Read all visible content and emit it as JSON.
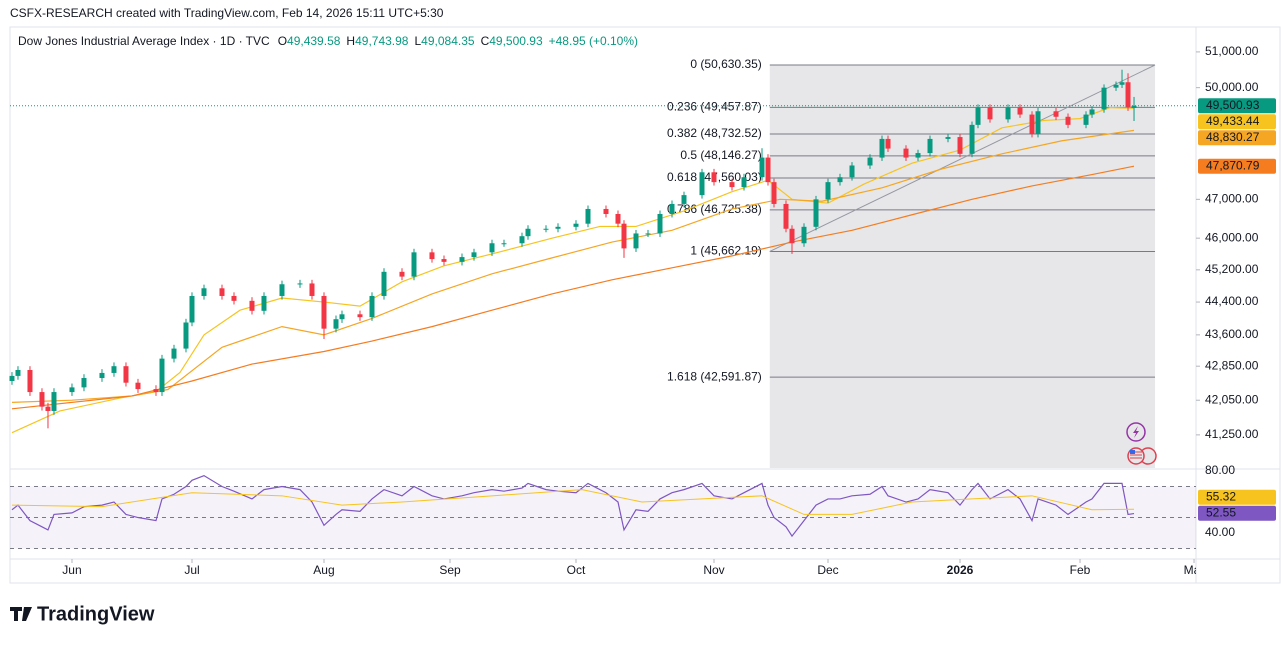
{
  "watermark": "CSFX-RESEARCH created with TradingView.com, Feb 14, 2026 15:11 UTC+5:30",
  "logo": "TradingView",
  "chart_data": {
    "type": "candlestick",
    "title": "Dow Jones Industrial Average Index · 1D · TVC",
    "ohlc": [
      {
        "key": "O",
        "text": "49,439.58"
      },
      {
        "key": "H",
        "text": "49,743.98"
      },
      {
        "key": "L",
        "text": "49,084.35"
      },
      {
        "key": "C",
        "text": "49,500.93"
      }
    ],
    "change": "+48.95 (+0.10%)",
    "log_scale": true,
    "up_color": "#089981",
    "down_color": "#f23645",
    "xlim": [
      -0.33,
      197.33
    ],
    "ylim": [
      40500,
      51680
    ],
    "xticks": [
      {
        "value": 10,
        "label": "Jun"
      },
      {
        "value": 30,
        "label": "Jul"
      },
      {
        "value": 52,
        "label": "Aug"
      },
      {
        "value": 73,
        "label": "Sep"
      },
      {
        "value": 94,
        "label": "Oct"
      },
      {
        "value": 117,
        "label": "Nov"
      },
      {
        "value": 136,
        "label": "Dec"
      },
      {
        "value": 158,
        "label": "2026"
      },
      {
        "value": 178,
        "label": "Feb"
      },
      {
        "value": 197,
        "label": "Mar"
      }
    ],
    "yticks": [
      {
        "value": 51000,
        "label": "51,000.00"
      },
      {
        "value": 50000,
        "label": "50,000.00"
      },
      {
        "value": 47000,
        "label": "47,000.00"
      },
      {
        "value": 46000,
        "label": "46,000.00"
      },
      {
        "value": 45200,
        "label": "45,200.00"
      },
      {
        "value": 44400,
        "label": "44,400.00"
      },
      {
        "value": 43600,
        "label": "43,600.00"
      },
      {
        "value": 42850,
        "label": "42,850.00"
      },
      {
        "value": 42050,
        "label": "42,050.00"
      },
      {
        "value": 41250,
        "label": "41,250.00"
      }
    ],
    "candles": {
      "x": [
        0,
        1,
        3,
        5,
        6,
        7,
        10,
        12,
        15,
        17,
        19,
        21,
        24,
        25,
        27,
        29,
        30,
        32,
        35,
        37,
        40,
        42,
        45,
        48,
        50,
        52,
        54,
        55,
        58,
        60,
        62,
        65,
        67,
        70,
        72,
        75,
        77,
        80,
        82,
        85,
        86,
        89,
        91,
        94,
        96,
        99,
        101,
        102,
        104,
        106,
        108,
        110,
        112,
        115,
        117,
        120,
        122,
        125,
        126,
        127,
        129,
        130,
        132,
        134,
        136,
        138,
        140,
        143,
        145,
        146,
        149,
        151,
        153,
        156,
        158,
        160,
        161,
        163,
        166,
        168,
        170,
        171,
        174,
        176,
        179,
        180,
        182,
        184,
        185,
        186,
        187
      ],
      "open": [
        42500,
        42620,
        42760,
        42240,
        41900,
        41800,
        42240,
        42350,
        42570,
        42690,
        42850,
        42460,
        42310,
        42240,
        43030,
        43270,
        43900,
        44550,
        44740,
        44550,
        44430,
        44185,
        44550,
        44840,
        44860,
        44550,
        43750,
        43980,
        44100,
        44030,
        44550,
        45150,
        45030,
        45640,
        45470,
        45400,
        45520,
        45640,
        45870,
        45870,
        46050,
        46240,
        46240,
        46290,
        46370,
        46750,
        46620,
        46370,
        45740,
        46120,
        46120,
        46620,
        46880,
        47110,
        47710,
        47450,
        47320,
        47580,
        48100,
        47450,
        46880,
        46240,
        45870,
        46290,
        47000,
        47450,
        47580,
        47890,
        48100,
        48600,
        48340,
        48100,
        48220,
        48600,
        48650,
        48200,
        48980,
        49450,
        49130,
        49450,
        49260,
        48730,
        49350,
        49200,
        48980,
        49260,
        49400,
        50000,
        50080,
        50150,
        49439.58
      ],
      "high": [
        42710,
        42850,
        42850,
        42330,
        41990,
        42330,
        42440,
        42660,
        42780,
        42940,
        42940,
        42550,
        42400,
        43120,
        43360,
        43990,
        44640,
        44830,
        44830,
        44640,
        44520,
        44640,
        44930,
        44950,
        44950,
        44640,
        44070,
        44190,
        44190,
        44640,
        45240,
        45240,
        45730,
        45730,
        45560,
        45610,
        45730,
        45960,
        45960,
        46140,
        46330,
        46330,
        46380,
        46460,
        46840,
        46840,
        46710,
        46460,
        46210,
        46210,
        46710,
        46970,
        47200,
        47800,
        47800,
        47540,
        47670,
        48350,
        48190,
        47540,
        46970,
        46330,
        46380,
        47090,
        47540,
        47670,
        47980,
        48190,
        48690,
        48690,
        48430,
        48310,
        48690,
        48740,
        48740,
        49070,
        49540,
        49540,
        49540,
        49540,
        49350,
        49440,
        49440,
        49290,
        49350,
        49490,
        50090,
        50170,
        50500,
        50400,
        49743.98
      ],
      "low": [
        42410,
        42530,
        42150,
        41810,
        41400,
        41710,
        42150,
        42260,
        42480,
        42600,
        42370,
        42220,
        42150,
        42150,
        42940,
        43180,
        43810,
        44460,
        44460,
        44340,
        44095,
        44095,
        44460,
        44750,
        44460,
        43500,
        43660,
        43890,
        43940,
        43940,
        44460,
        44940,
        44940,
        45380,
        45310,
        45310,
        45430,
        45550,
        45780,
        45780,
        45960,
        46150,
        46150,
        46200,
        46280,
        46530,
        46280,
        45500,
        45650,
        46030,
        46030,
        46530,
        46790,
        47020,
        47360,
        47230,
        47230,
        47490,
        47360,
        46790,
        46150,
        45600,
        45780,
        46200,
        46910,
        47360,
        47490,
        47800,
        48010,
        48250,
        48010,
        48010,
        48130,
        48510,
        48110,
        48110,
        48890,
        49040,
        49040,
        49170,
        48640,
        48640,
        49110,
        48890,
        48890,
        49170,
        49310,
        49910,
        49990,
        49360,
        49084.35
      ],
      "close": [
        42620,
        42760,
        42240,
        41900,
        41800,
        42240,
        42350,
        42570,
        42690,
        42850,
        42460,
        42310,
        42240,
        43030,
        43270,
        43900,
        44550,
        44740,
        44550,
        44430,
        44185,
        44550,
        44840,
        44860,
        44550,
        43750,
        43980,
        44100,
        44030,
        44550,
        45150,
        45030,
        45640,
        45470,
        45400,
        45520,
        45640,
        45870,
        45870,
        46050,
        46240,
        46240,
        46290,
        46370,
        46750,
        46620,
        46370,
        45740,
        46120,
        46120,
        46620,
        46880,
        47110,
        47710,
        47450,
        47320,
        47580,
        48100,
        47450,
        46880,
        46240,
        45870,
        46290,
        47000,
        47450,
        47580,
        47890,
        48100,
        48600,
        48340,
        48100,
        48220,
        48600,
        48650,
        48200,
        48980,
        49450,
        49130,
        49450,
        49260,
        48730,
        49350,
        49200,
        48980,
        49260,
        49400,
        50000,
        50080,
        50150,
        49451.98,
        49500.93
      ]
    },
    "series": [
      {
        "color": "#f7c41f",
        "x": [
          0,
          8,
          18,
          24,
          28,
          32,
          38,
          45,
          52,
          58,
          65,
          72,
          80,
          90,
          98,
          104,
          112,
          120,
          126,
          130,
          136,
          142,
          150,
          158,
          165,
          172,
          178,
          183,
          187
        ],
        "values": [
          41300,
          41800,
          42100,
          42250,
          42700,
          43600,
          44200,
          44500,
          44400,
          44300,
          44900,
          45300,
          45600,
          46000,
          46300,
          46300,
          46700,
          47200,
          47500,
          47000,
          46900,
          47400,
          47950,
          48300,
          48900,
          49100,
          49150,
          49450,
          49433.44
        ]
      },
      {
        "color": "#f5a623",
        "x": [
          0,
          10,
          20,
          26,
          35,
          45,
          52,
          60,
          70,
          80,
          90,
          100,
          110,
          120,
          128,
          135,
          145,
          155,
          165,
          175,
          187
        ],
        "values": [
          42000,
          42050,
          42150,
          42300,
          43300,
          43800,
          43600,
          44000,
          44600,
          45100,
          45500,
          45900,
          46200,
          46750,
          47000,
          46950,
          47300,
          47800,
          48200,
          48550,
          48830.27
        ]
      },
      {
        "color": "#f57c1f",
        "x": [
          0,
          20,
          30,
          40,
          52,
          60,
          70,
          80,
          90,
          100,
          110,
          120,
          130,
          140,
          150,
          160,
          170,
          180,
          187
        ],
        "values": [
          41850,
          42150,
          42500,
          42900,
          43200,
          43450,
          43800,
          44200,
          44600,
          44950,
          45250,
          45550,
          45900,
          46200,
          46600,
          47000,
          47350,
          47650,
          47870.79
        ]
      }
    ],
    "price_tags": [
      {
        "value": 49500.93,
        "label": "49,500.93",
        "color": "#089981",
        "text_color": "#ffffff"
      },
      {
        "value": 49433.44,
        "label": "49,433.44",
        "color": "#f7c41f",
        "text_color": "#131722"
      },
      {
        "value": 48830.27,
        "label": "48,830.27",
        "color": "#f5a623",
        "text_color": "#131722"
      },
      {
        "value": 47870.79,
        "label": "47,870.79",
        "color": "#f57c1f",
        "text_color": "#ffffff"
      }
    ],
    "fib": {
      "x": [
        126.3,
        190.5
      ],
      "color": "#787b86",
      "levels": [
        {
          "value": 50630.35,
          "label": "0 (50,630.35)"
        },
        {
          "value": 49457.87,
          "label": "0.236 (49,457.87)"
        },
        {
          "value": 48732.52,
          "label": "0.382 (48,732.52)"
        },
        {
          "value": 48146.27,
          "label": "0.5 (48,146.27)"
        },
        {
          "value": 47560.03,
          "label": "0.618 (47,560.03)"
        },
        {
          "value": 46725.38,
          "label": "0.786 (46,725.38)"
        },
        {
          "value": 45662.19,
          "label": "1 (45,662.19)"
        },
        {
          "value": 42591.87,
          "label": "1.618 (42,591.87)"
        }
      ]
    },
    "rsi": {
      "color": "#7e57c2",
      "ma_color": "#f7c41f",
      "ylim": [
        29.7,
        80.65
      ],
      "yticks": [
        {
          "value": 80,
          "label": "80.00"
        },
        {
          "value": 40,
          "label": "40.00"
        }
      ],
      "levels": [
        70,
        50,
        30
      ],
      "values": [
        55,
        58,
        48,
        44,
        42,
        52,
        53,
        57,
        58,
        60,
        52,
        50,
        48,
        62,
        65,
        70,
        74,
        77,
        70,
        67,
        62,
        68,
        70,
        68,
        60,
        45,
        52,
        55,
        54,
        62,
        68,
        64,
        70,
        64,
        62,
        64,
        66,
        68,
        67,
        69,
        72,
        68,
        67,
        66,
        72,
        66,
        60,
        42,
        55,
        54,
        62,
        66,
        68,
        72,
        64,
        62,
        66,
        72,
        58,
        50,
        44,
        38,
        48,
        58,
        62,
        62,
        64,
        65,
        70,
        64,
        60,
        62,
        68,
        66,
        58,
        68,
        72,
        62,
        68,
        62,
        48,
        62,
        58,
        52,
        60,
        62,
        72,
        72,
        72,
        52,
        52.55
      ],
      "ma_x": [
        0,
        15,
        30,
        45,
        55,
        65,
        80,
        95,
        105,
        115,
        125,
        132,
        140,
        150,
        160,
        170,
        180,
        187
      ],
      "ma_values": [
        58,
        57,
        66,
        64,
        58,
        60,
        64,
        68,
        60,
        62,
        64,
        52,
        52,
        60,
        62,
        64,
        55,
        55.32
      ],
      "tags": [
        {
          "value": 55.32,
          "label": "55.32",
          "color": "#f7c41f",
          "text_color": "#131722"
        },
        {
          "value": 52.55,
          "label": "52.55",
          "color": "#7e57c2",
          "text_color": "#ffffff"
        }
      ]
    }
  }
}
